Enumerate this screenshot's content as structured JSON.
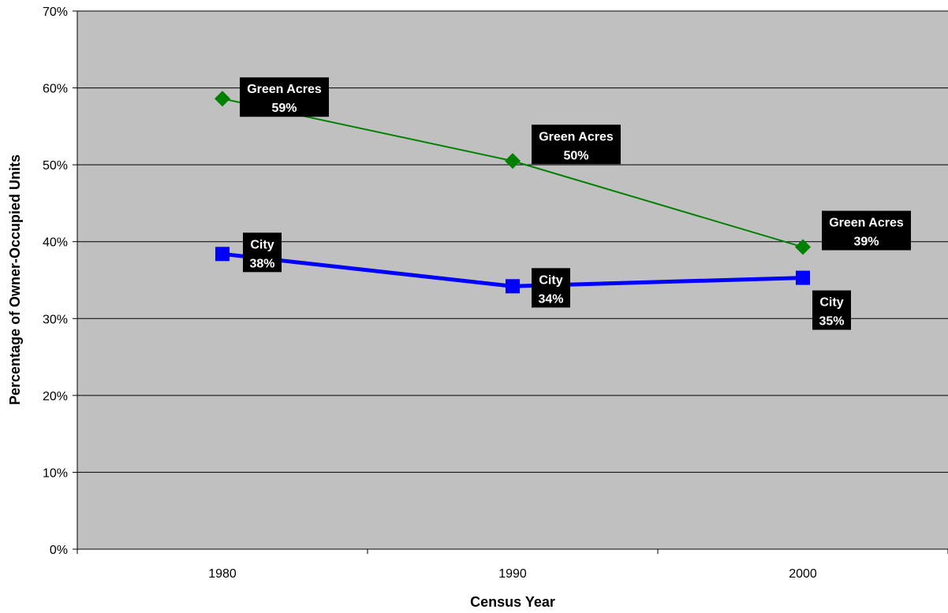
{
  "chart_data": {
    "type": "line",
    "title": "",
    "xlabel": "Census Year",
    "ylabel": "Percentage of Owner-Occupied Units",
    "categories": [
      "1980",
      "1990",
      "2000"
    ],
    "y_ticks": [
      "0%",
      "10%",
      "20%",
      "30%",
      "40%",
      "50%",
      "60%",
      "70%"
    ],
    "ylim": [
      0,
      70
    ],
    "grid": true,
    "legend": "none",
    "plot_background": "#C0C0C0",
    "series": [
      {
        "name": "Green Acres",
        "values": [
          58.6,
          50.5,
          39.3
        ],
        "labels": [
          "59%",
          "50%",
          "39%"
        ],
        "color": "#008000",
        "marker": "diamond"
      },
      {
        "name": "City",
        "values": [
          38.4,
          34.2,
          35.3
        ],
        "labels": [
          "38%",
          "34%",
          "35%"
        ],
        "color": "#0000FF",
        "marker": "square"
      }
    ]
  }
}
